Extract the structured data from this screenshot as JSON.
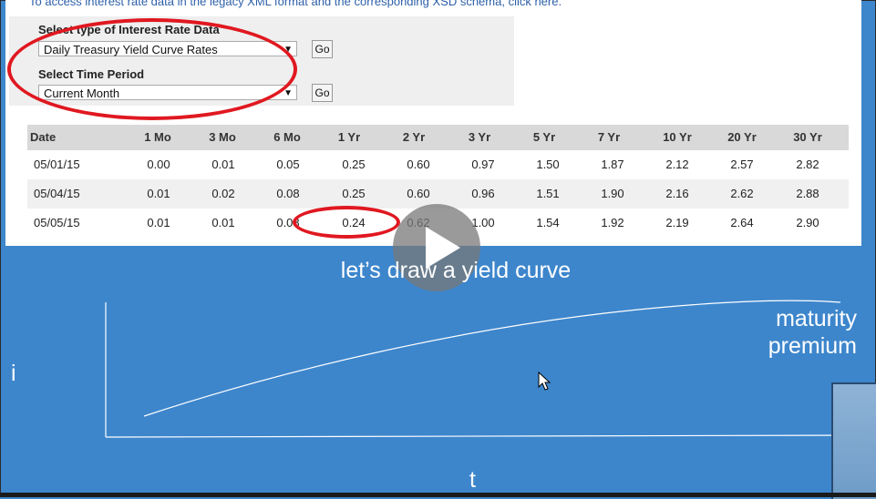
{
  "page": {
    "top_link_text": "To access interest rate data in the legacy XML format and the corresponding XSD schema, click here.",
    "select_type": {
      "label": "Select type of Interest Rate Data",
      "value": "Daily Treasury Yield Curve Rates",
      "button": "Go"
    },
    "select_period": {
      "label": "Select Time Period",
      "value": "Current Month",
      "button": "Go"
    }
  },
  "table": {
    "headers": [
      "Date",
      "1 Mo",
      "3 Mo",
      "6 Mo",
      "1 Yr",
      "2 Yr",
      "3 Yr",
      "5 Yr",
      "7 Yr",
      "10 Yr",
      "20 Yr",
      "30 Yr"
    ],
    "rows": [
      [
        "05/01/15",
        "0.00",
        "0.01",
        "0.05",
        "0.25",
        "0.60",
        "0.97",
        "1.50",
        "1.87",
        "2.12",
        "2.57",
        "2.82"
      ],
      [
        "05/04/15",
        "0.01",
        "0.02",
        "0.08",
        "0.25",
        "0.60",
        "0.96",
        "1.51",
        "1.90",
        "2.16",
        "2.62",
        "2.88"
      ],
      [
        "05/05/15",
        "0.01",
        "0.01",
        "0.08",
        "0.24",
        "0.62",
        "1.00",
        "1.54",
        "1.92",
        "2.19",
        "2.64",
        "2.90"
      ]
    ]
  },
  "video": {
    "caption": "let’s draw a yield curve"
  },
  "chart_labels": {
    "y_axis": "i",
    "x_axis": "t",
    "annotation_line1": "maturity",
    "annotation_line2": "premium"
  },
  "colors": {
    "background": "#3d86cc",
    "highlight": "#e01820",
    "header_bg": "#d9d9d9"
  },
  "icons": {
    "play": "play-icon",
    "cursor": "mouse-pointer-icon"
  }
}
